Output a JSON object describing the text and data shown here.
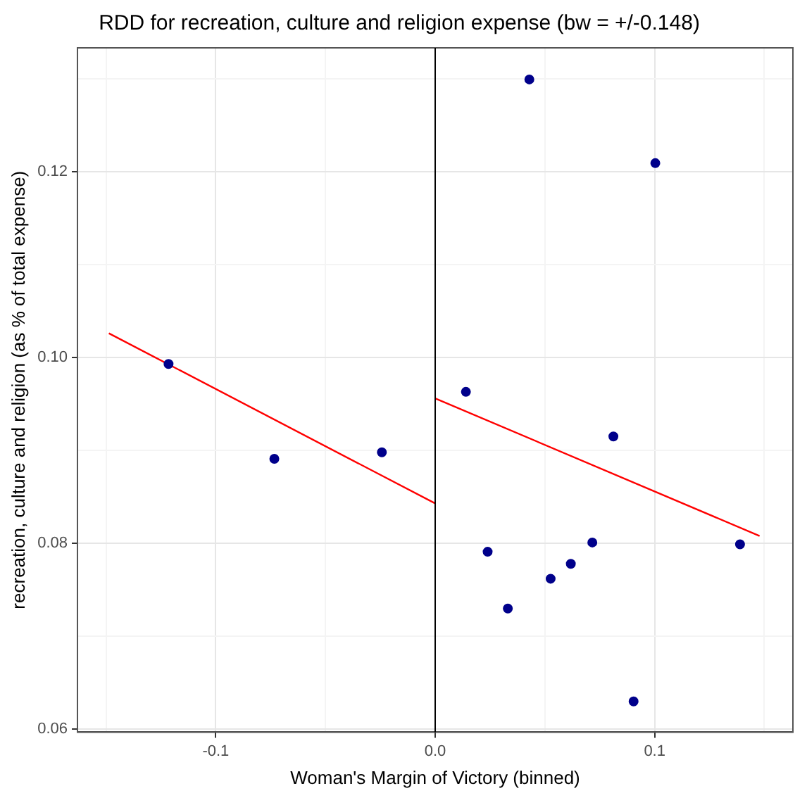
{
  "chart_data": {
    "type": "scatter",
    "title": "RDD for recreation, culture and religion expense (bw = +/-0.148)",
    "xlabel": "Woman's Margin of Victory (binned)",
    "ylabel": "recreation, culture and religion (as % of total expense)",
    "xlim": [
      -0.163,
      0.163
    ],
    "ylim": [
      0.0597,
      0.1333
    ],
    "xticks": [
      {
        "value": -0.15,
        "label": null
      },
      {
        "value": -0.1,
        "label": "-0.1"
      },
      {
        "value": -0.05,
        "label": null
      },
      {
        "value": 0,
        "label": "0.0"
      },
      {
        "value": 0.05,
        "label": null
      },
      {
        "value": 0.1,
        "label": "0.1"
      },
      {
        "value": 0.15,
        "label": null
      }
    ],
    "yticks": [
      0.06,
      {
        "value": 0.07,
        "label": null
      },
      0.08,
      {
        "value": 0.09,
        "label": null
      },
      {
        "value": 0.1,
        "label": "0.10"
      },
      {
        "value": 0.11,
        "label": null
      },
      0.12,
      {
        "value": 0.13,
        "label": null
      }
    ],
    "grid": true,
    "legend": false,
    "ref_lines": [
      {
        "axis": "x",
        "value": 0,
        "color": "#000000"
      }
    ],
    "series": [
      {
        "marker": "circle",
        "color": "#00008b",
        "x": [
          -0.1215,
          -0.0733,
          -0.0243,
          0.014,
          0.0239,
          0.0331,
          0.0429,
          0.0526,
          0.0618,
          0.0716,
          0.0812,
          0.0904,
          0.1003,
          0.1389
        ],
        "values": [
          0.0993,
          0.0891,
          0.0898,
          0.0963,
          0.0791,
          0.073,
          0.1299,
          0.0762,
          0.0778,
          0.0801,
          0.0915,
          0.063,
          0.1209,
          0.0799
        ]
      },
      {
        "type": "line",
        "marker": "none",
        "color": "#ff0000",
        "x": [
          -0.1487,
          0
        ],
        "values": [
          0.1026,
          0.0843
        ]
      },
      {
        "type": "line",
        "marker": "none",
        "color": "#ff0000",
        "x": [
          0,
          0.1478
        ],
        "values": [
          0.0956,
          0.0808
        ]
      }
    ]
  }
}
